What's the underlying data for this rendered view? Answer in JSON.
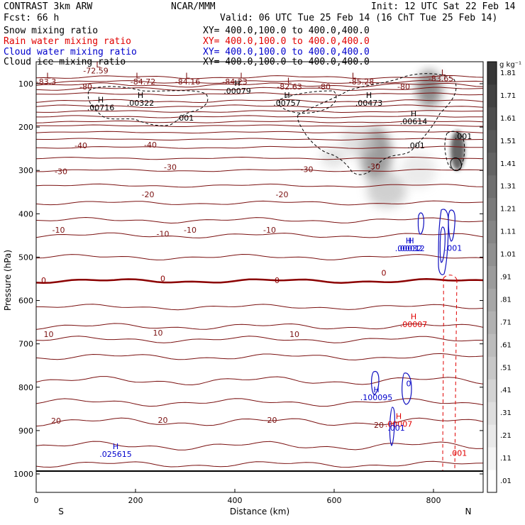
{
  "header": {
    "product": "CONTRAST  3km ARW",
    "org": "NCAR/MMM",
    "init": "Init: 12 UTC Sat 22 Feb 14",
    "fcst": "Fcst:   66 h",
    "valid": "Valid: 06 UTC Tue 25 Feb 14 (16 ChT Tue 25 Feb 14)",
    "fields": [
      {
        "name": "Snow mixing ratio",
        "xy": "XY= 400.0,100.0 to 400.0,400.0",
        "color": "#000000"
      },
      {
        "name": "Rain water mixing ratio",
        "xy": "XY= 400.0,100.0 to 400.0,400.0",
        "color": "#e00000"
      },
      {
        "name": "Cloud water mixing ratio",
        "xy": "XY= 400.0,100.0 to 400.0,400.0",
        "color": "#0000cc"
      },
      {
        "name": "Cloud ice mixing ratio",
        "xy": "XY= 400.0,100.0 to 400.0,400.0",
        "color": "#000000"
      }
    ]
  },
  "chart_data": {
    "type": "cross-section",
    "xlabel": "Distance (km)",
    "ylabel": "Pressure (hPa)",
    "xlim": [
      0,
      900
    ],
    "ylim": [
      1050,
      50
    ],
    "xticks": [
      0,
      200,
      400,
      600,
      800
    ],
    "yticks": [
      100,
      200,
      300,
      400,
      500,
      600,
      700,
      800,
      900,
      1000
    ],
    "left_end": "S",
    "right_end": "N",
    "colorbar": {
      "unit": "g kg⁻¹",
      "levels": [
        ".01",
        ".11",
        ".21",
        ".31",
        ".41",
        ".51",
        ".61",
        ".71",
        ".81",
        ".91",
        "1.01",
        "1.11",
        "1.21",
        "1.31",
        "1.41",
        "1.51",
        "1.61",
        "1.71",
        "1.81"
      ]
    },
    "temperature_colors": {
      "isotherm": "#7a1010",
      "zero": "#8b0000",
      "surface": "#000000"
    },
    "temperature_labels": [
      {
        "text": "-83.3",
        "x": 20,
        "p": 102,
        "color": "#7a1010"
      },
      {
        "text": "-72.59",
        "x": 120,
        "p": 76,
        "color": "#7a1010"
      },
      {
        "text": "-84.72",
        "x": 215,
        "p": 102,
        "color": "#7a1010"
      },
      {
        "text": "-84.16",
        "x": 305,
        "p": 102,
        "color": "#7a1010"
      },
      {
        "text": "-84.23",
        "x": 400,
        "p": 102,
        "color": "#7a1010"
      },
      {
        "text": "-82.63",
        "x": 510,
        "p": 113,
        "color": "#7a1010"
      },
      {
        "text": "-85.28",
        "x": 655,
        "p": 102,
        "color": "#7a1010"
      },
      {
        "text": "-83.65",
        "x": 815,
        "p": 94,
        "color": "#7a1010"
      },
      {
        "text": "-80",
        "x": 100,
        "p": 113,
        "color": "#7a1010"
      },
      {
        "text": "-80",
        "x": 580,
        "p": 113,
        "color": "#7a1010"
      },
      {
        "text": "-80",
        "x": 740,
        "p": 113,
        "color": "#7a1010"
      },
      {
        "text": "-40",
        "x": 90,
        "p": 249,
        "color": "#7a1010"
      },
      {
        "text": "-40",
        "x": 230,
        "p": 247,
        "color": "#7a1010"
      },
      {
        "text": "-30",
        "x": 50,
        "p": 309,
        "color": "#7a1010"
      },
      {
        "text": "-30",
        "x": 270,
        "p": 299,
        "color": "#7a1010"
      },
      {
        "text": "-30",
        "x": 545,
        "p": 304,
        "color": "#7a1010"
      },
      {
        "text": "-30",
        "x": 680,
        "p": 297,
        "color": "#7a1010"
      },
      {
        "text": "-20",
        "x": 225,
        "p": 362,
        "color": "#7a1010"
      },
      {
        "text": "-20",
        "x": 495,
        "p": 362,
        "color": "#7a1010"
      },
      {
        "text": "-10",
        "x": 45,
        "p": 444,
        "color": "#7a1010"
      },
      {
        "text": "-10",
        "x": 255,
        "p": 453,
        "color": "#7a1010"
      },
      {
        "text": "-10",
        "x": 310,
        "p": 444,
        "color": "#7a1010"
      },
      {
        "text": "-10",
        "x": 470,
        "p": 444,
        "color": "#7a1010"
      },
      {
        "text": "0",
        "x": 15,
        "p": 560,
        "color": "#8b0000"
      },
      {
        "text": "0",
        "x": 255,
        "p": 556,
        "color": "#8b0000"
      },
      {
        "text": "0",
        "x": 485,
        "p": 560,
        "color": "#8b0000"
      },
      {
        "text": "0",
        "x": 700,
        "p": 543,
        "color": "#8b0000"
      },
      {
        "text": "10",
        "x": 25,
        "p": 684,
        "color": "#7a1010"
      },
      {
        "text": "10",
        "x": 245,
        "p": 681,
        "color": "#7a1010"
      },
      {
        "text": "10",
        "x": 520,
        "p": 684,
        "color": "#7a1010"
      },
      {
        "text": "20",
        "x": 40,
        "p": 884,
        "color": "#7a1010"
      },
      {
        "text": "20",
        "x": 255,
        "p": 882,
        "color": "#7a1010"
      },
      {
        "text": "20",
        "x": 475,
        "p": 882,
        "color": "#7a1010"
      },
      {
        "text": "20",
        "x": 690,
        "p": 894,
        "color": "#7a1010"
      }
    ],
    "extrema": [
      {
        "mark": "L",
        "x": 25,
        "p": 88,
        "color": "#7a1010"
      },
      {
        "mark": "L",
        "x": 125,
        "p": 62,
        "color": "#7a1010"
      },
      {
        "mark": "L",
        "x": 205,
        "p": 88,
        "color": "#7a1010"
      },
      {
        "mark": "L",
        "x": 305,
        "p": 88,
        "color": "#7a1010"
      },
      {
        "mark": "L",
        "x": 415,
        "p": 88,
        "color": "#7a1010"
      },
      {
        "mark": "L",
        "x": 510,
        "p": 99,
        "color": "#7a1010"
      },
      {
        "mark": "L",
        "x": 640,
        "p": 88,
        "color": "#7a1010"
      },
      {
        "mark": "L",
        "x": 820,
        "p": 80,
        "color": "#7a1010"
      },
      {
        "mark": "H",
        "x": 130,
        "p": 143,
        "value": ".00716",
        "color": "#000000"
      },
      {
        "mark": "H",
        "x": 210,
        "p": 133,
        "value": ".00322",
        "color": "#000000"
      },
      {
        "mark": "H",
        "x": 405,
        "p": 105,
        "value": ".00079",
        "color": "#000000"
      },
      {
        "mark": "H",
        "x": 505,
        "p": 133,
        "value": ".00757",
        "color": "#000000"
      },
      {
        "mark": "H",
        "x": 670,
        "p": 133,
        "value": ".00473",
        "color": "#000000"
      },
      {
        "mark": "H",
        "x": 760,
        "p": 175,
        "value": ".00614",
        "color": "#000000"
      },
      {
        "mark": "H",
        "x": 750,
        "p": 468,
        "value": ".00032",
        "color": "#0000cc"
      },
      {
        "mark": "H",
        "x": 755,
        "p": 468,
        "value": ".00012",
        "color": "#0000cc"
      },
      {
        "mark": "H",
        "x": 760,
        "p": 643,
        "value": ".00007",
        "color": "#e00000"
      },
      {
        "mark": "H",
        "x": 685,
        "p": 812,
        "value": ".100095",
        "color": "#0000cc"
      },
      {
        "mark": "H",
        "x": 730,
        "p": 873,
        "value": ".00007",
        "color": "#e00000"
      },
      {
        "mark": "H",
        "x": 160,
        "p": 943,
        "value": ".025615",
        "color": "#0000cc"
      }
    ],
    "contour_labels": [
      {
        "text": ".001",
        "x": 300,
        "p": 185,
        "color": "#000000"
      },
      {
        "text": ".001",
        "x": 765,
        "p": 249,
        "color": "#000000"
      },
      {
        "text": ".001",
        "x": 860,
        "p": 228,
        "color": "#000000"
      },
      {
        "text": ".001",
        "x": 840,
        "p": 485,
        "color": "#0000cc"
      },
      {
        "text": ".001",
        "x": 725,
        "p": 900,
        "color": "#0000cc"
      },
      {
        "text": ".001",
        "x": 850,
        "p": 958,
        "color": "#e00000"
      },
      {
        "text": "0",
        "x": 750,
        "p": 798,
        "color": "#0000cc"
      }
    ]
  }
}
